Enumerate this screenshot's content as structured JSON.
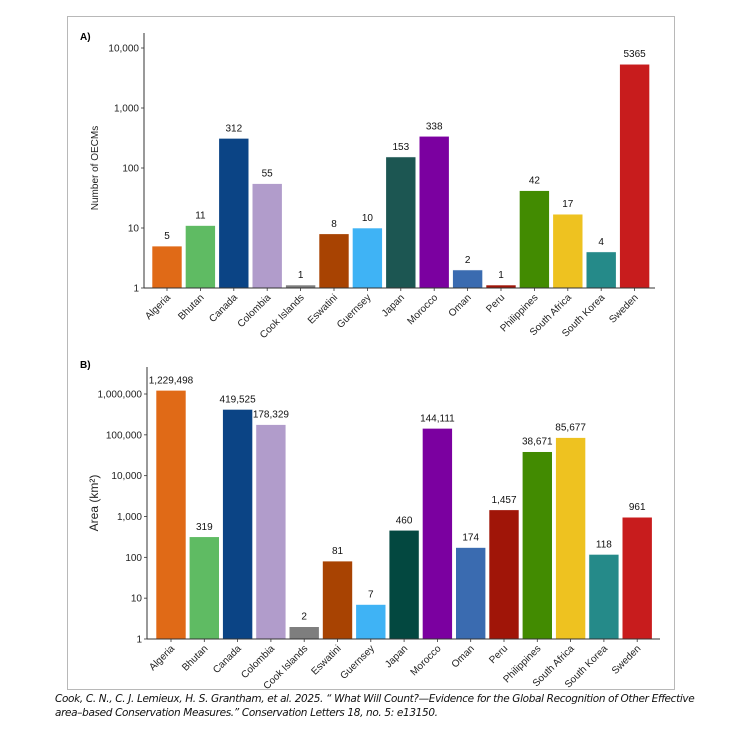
{
  "chart_data": [
    {
      "type": "bar",
      "panel_label": "A)",
      "title": "",
      "xlabel": "",
      "ylabel": "Number of OECMs",
      "yscale": "log",
      "ylim": [
        1,
        10000
      ],
      "yticks": [
        1,
        10,
        100,
        1000,
        10000
      ],
      "ytick_labels": [
        "1",
        "10",
        "100",
        "1,000",
        "10,000"
      ],
      "grid": false,
      "legend": "none",
      "categories": [
        "Algeria",
        "Bhutan",
        "Canada",
        "Colombia",
        "Cook Islands",
        "Eswatini",
        "Guernsey",
        "Japan",
        "Morocco",
        "Oman",
        "Peru",
        "Philippines",
        "South Africa",
        "South Korea",
        "Sweden"
      ],
      "values": [
        5,
        11,
        312,
        55,
        1,
        8,
        10,
        153,
        338,
        2,
        1,
        42,
        17,
        4,
        5365
      ],
      "value_labels": [
        "5",
        "11",
        "312",
        "55",
        "1",
        "8",
        "10",
        "153",
        "338",
        "2",
        "1",
        "42",
        "17",
        "4",
        "5365"
      ],
      "colors": [
        "#e06a17",
        "#5fbb63",
        "#0b4485",
        "#b19ccb",
        "#7e7e7e",
        "#a84302",
        "#3fb3f5",
        "#1c5652",
        "#7b00a0",
        "#3a6bb0",
        "#a01508",
        "#428b01",
        "#eec220",
        "#258a89",
        "#c81c1d"
      ]
    },
    {
      "type": "bar",
      "panel_label": "B)",
      "title": "",
      "xlabel": "",
      "ylabel": "Area (km²)",
      "yscale": "log",
      "ylim": [
        1,
        1000000
      ],
      "yticks": [
        1,
        10,
        100,
        1000,
        10000,
        100000,
        1000000
      ],
      "ytick_labels": [
        "1",
        "10",
        "100",
        "1,000",
        "10,000",
        "100,000",
        "1,000,000"
      ],
      "grid": false,
      "legend": "none",
      "categories": [
        "Algeria",
        "Bhutan",
        "Canada",
        "Colombia",
        "Cook Islands",
        "Eswatini",
        "Guernsey",
        "Japan",
        "Morocco",
        "Oman",
        "Peru",
        "Philippines",
        "South Africa",
        "South Korea",
        "Sweden"
      ],
      "values": [
        1229498,
        319,
        419525,
        178329,
        2,
        81,
        7,
        460,
        144111,
        174,
        1457,
        38671,
        85677,
        118,
        961
      ],
      "value_labels": [
        "1,229,498",
        "319",
        "419,525",
        "178,329",
        "2",
        "81",
        "7",
        "460",
        "144,111",
        "174",
        "1,457",
        "38,671",
        "85,677",
        "118",
        "961"
      ],
      "colors": [
        "#e06a17",
        "#5fbb63",
        "#0b4485",
        "#b19ccb",
        "#7e7e7e",
        "#a84302",
        "#3fb3f5",
        "#034840",
        "#7b00a0",
        "#3a6bb0",
        "#a01508",
        "#428b01",
        "#eec220",
        "#258a89",
        "#c81c1d"
      ]
    }
  ],
  "citation": "Cook, C. N., C. J. Lemieux, H. S. Grantham, et al. 2025. “ What Will Count?—Evidence for the Global Recognition of Other Effective area–based Conservation Measures.” Conservation Letters 18, no. 5: e13150."
}
